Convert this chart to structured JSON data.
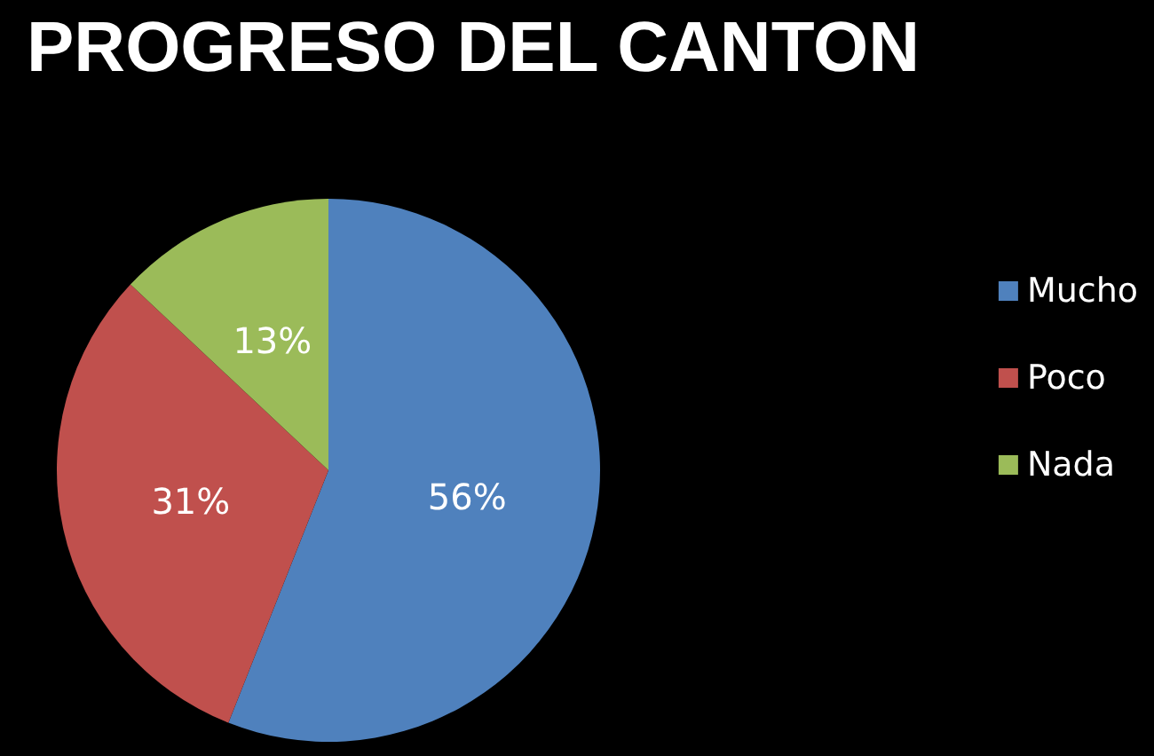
{
  "chart_data": {
    "type": "pie",
    "title": "PROGRESO DEL CANTON",
    "categories": [
      "Mucho",
      "Poco",
      "Nada"
    ],
    "values": [
      56,
      31,
      13
    ],
    "colors": [
      "#4f81bd",
      "#c0504d",
      "#9bbb59"
    ],
    "value_labels": [
      "56%",
      "31%",
      "13%"
    ],
    "legend": "right"
  }
}
